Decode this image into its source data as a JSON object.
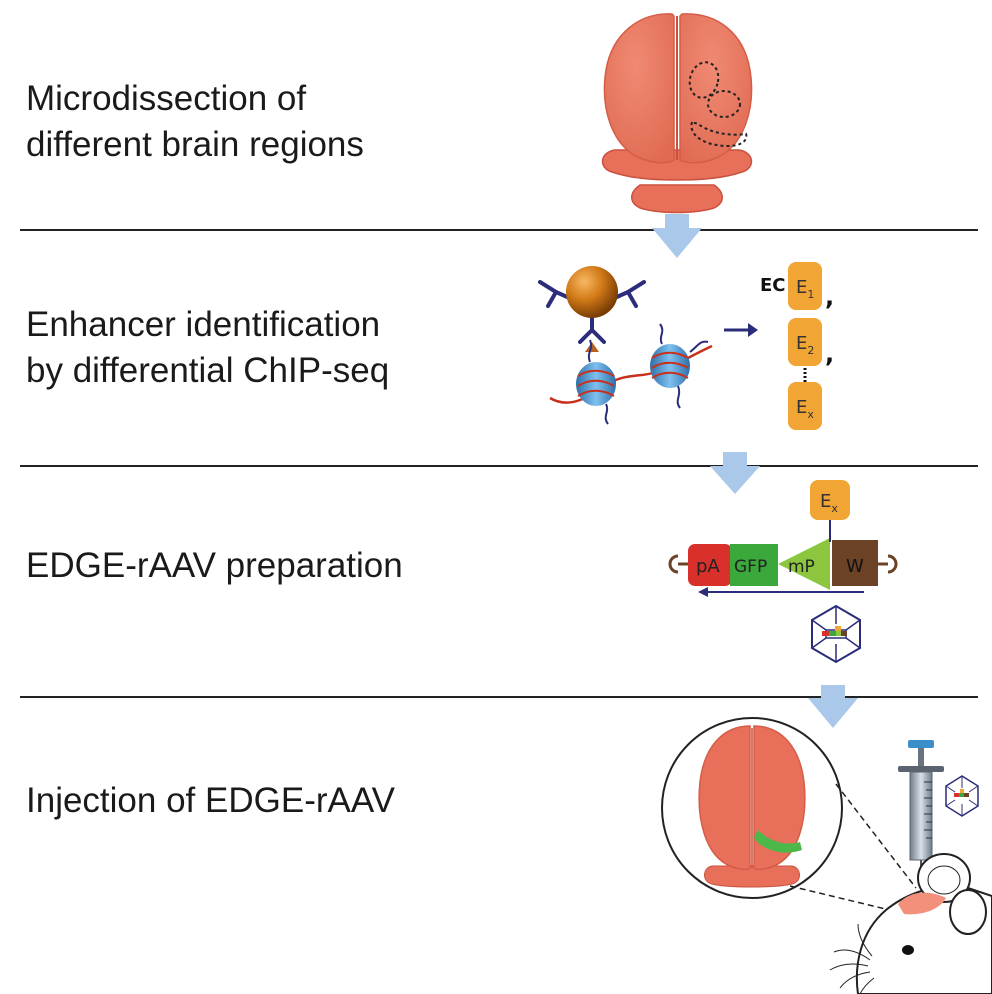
{
  "steps": [
    {
      "line1": "Microdissection of",
      "line2": "different brain regions"
    },
    {
      "line1": "Enhancer identification",
      "line2": "by differential ChIP-seq"
    },
    {
      "line1": "EDGE-rAAV preparation"
    },
    {
      "line1": "Injection of EDGE-rAAV"
    }
  ],
  "enhancer_list": {
    "prefix": "EC",
    "items": [
      {
        "main": "E",
        "sub": "1"
      },
      {
        "main": "E",
        "sub": "2"
      },
      {
        "main": "E",
        "sub": "x"
      }
    ],
    "separator": ","
  },
  "construct": {
    "enhancer": {
      "main": "E",
      "sub": "x"
    },
    "segments": [
      "pA",
      "GFP",
      "mP",
      "W"
    ]
  },
  "colors": {
    "brain": "#e8705a",
    "brain_dark": "#c9513d",
    "arrow": "#a9c8ea",
    "enhancer": "#f0a535",
    "pA": "#d9302c",
    "GFP": "#3aa83a",
    "mP": "#8cc63f",
    "W": "#6b4226",
    "capsid": "#2b2d7a",
    "green_region": "#4cb84a"
  }
}
